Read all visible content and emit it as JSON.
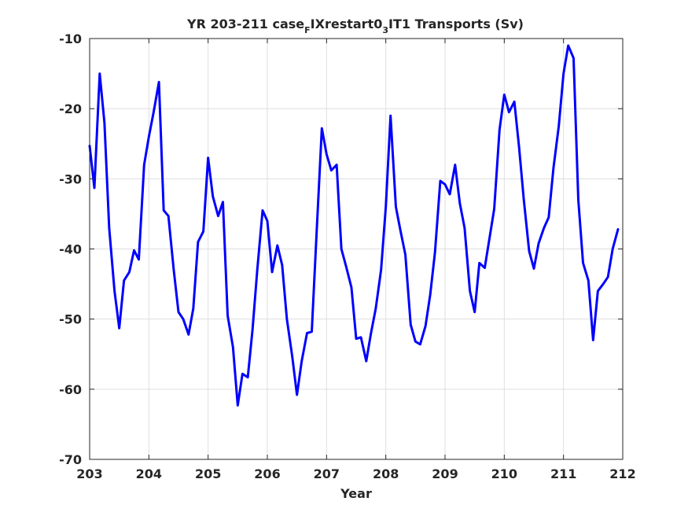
{
  "chart_data": {
    "type": "line",
    "title": {
      "part1": "YR 203-211 case",
      "sub1": "F",
      "part2": "IXrestart0",
      "sub2": "3",
      "part3": "IT1 Transports (Sv)"
    },
    "xlabel": "Year",
    "ylabel": "",
    "xlim": [
      203,
      212
    ],
    "ylim": [
      -70,
      -10
    ],
    "xticks": [
      "203",
      "204",
      "205",
      "206",
      "207",
      "208",
      "209",
      "210",
      "211",
      "212"
    ],
    "yticks": [
      "-10",
      "-20",
      "-30",
      "-40",
      "-50",
      "-60",
      "-70"
    ],
    "grid": true,
    "series": [
      {
        "color": "#0000ff",
        "x": [
          203.0,
          203.08,
          203.17,
          203.25,
          203.33,
          203.42,
          203.5,
          203.58,
          203.67,
          203.75,
          203.83,
          203.92,
          204.0,
          204.08,
          204.17,
          204.25,
          204.33,
          204.42,
          204.5,
          204.58,
          204.67,
          204.75,
          204.83,
          204.92,
          205.0,
          205.08,
          205.17,
          205.25,
          205.33,
          205.42,
          205.5,
          205.58,
          205.67,
          205.75,
          205.83,
          205.92,
          206.0,
          206.08,
          206.17,
          206.25,
          206.33,
          206.42,
          206.5,
          206.58,
          206.67,
          206.75,
          206.83,
          206.92,
          207.0,
          207.08,
          207.17,
          207.25,
          207.33,
          207.42,
          207.5,
          207.58,
          207.67,
          207.75,
          207.83,
          207.92,
          208.0,
          208.08,
          208.17,
          208.25,
          208.33,
          208.42,
          208.5,
          208.58,
          208.67,
          208.75,
          208.83,
          208.92,
          209.0,
          209.08,
          209.17,
          209.25,
          209.33,
          209.42,
          209.5,
          209.58,
          209.67,
          209.75,
          209.83,
          209.92,
          210.0,
          210.08,
          210.17,
          210.25,
          210.33,
          210.42,
          210.5,
          210.58,
          210.67,
          210.75,
          210.83,
          210.92,
          211.0,
          211.08,
          211.17,
          211.25,
          211.33,
          211.42,
          211.5,
          211.58,
          211.67,
          211.75,
          211.83,
          211.92
        ],
        "y": [
          -25.3,
          -31.3,
          -15.0,
          -22.0,
          -37.0,
          -46.0,
          -51.3,
          -44.5,
          -43.3,
          -40.2,
          -41.5,
          -28.0,
          -24.0,
          -20.5,
          -16.2,
          -34.5,
          -35.3,
          -43.0,
          -49.0,
          -50.0,
          -52.2,
          -48.5,
          -39.0,
          -37.5,
          -27.0,
          -32.5,
          -35.3,
          -33.3,
          -49.5,
          -54.0,
          -62.3,
          -57.8,
          -58.3,
          -51.5,
          -43.0,
          -34.5,
          -36.0,
          -43.3,
          -39.5,
          -42.3,
          -50.0,
          -55.3,
          -60.8,
          -56.0,
          -52.0,
          -51.8,
          -38.0,
          -22.8,
          -26.5,
          -28.8,
          -28.0,
          -40.0,
          -42.5,
          -45.5,
          -52.8,
          -52.6,
          -56.0,
          -52.0,
          -48.5,
          -43.0,
          -34.0,
          -21.0,
          -34.0,
          -37.5,
          -40.8,
          -50.8,
          -53.2,
          -53.6,
          -51.0,
          -46.5,
          -40.5,
          -30.3,
          -30.8,
          -32.2,
          -28.0,
          -33.5,
          -37.0,
          -46.0,
          -49.0,
          -42.0,
          -42.7,
          -38.5,
          -34.3,
          -23.0,
          -18.0,
          -20.5,
          -19.0,
          -25.5,
          -33.0,
          -40.3,
          -42.8,
          -39.2,
          -37.0,
          -35.5,
          -28.5,
          -22.5,
          -15.0,
          -11.0,
          -12.8,
          -33.0,
          -42.0,
          -44.5,
          -53.0,
          -46.0,
          -45.0,
          -44.0,
          -40.0,
          -37.2
        ]
      }
    ]
  }
}
